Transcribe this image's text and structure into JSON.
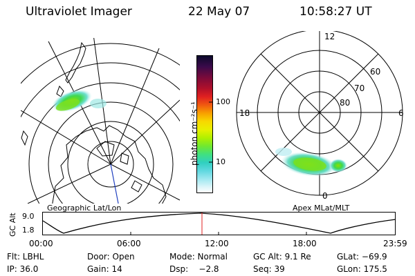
{
  "header": {
    "title": "Ultraviolet Imager",
    "date": "22 May 07",
    "time": "10:58:27 UT"
  },
  "geo_panel": {
    "label": "Geographic Lat/Lon"
  },
  "apex_panel": {
    "label": "Apex MLat/MLT",
    "mlt_labels": {
      "top": "12",
      "left": "18",
      "right": "6",
      "bottom": "0"
    },
    "lat_labels": [
      "60",
      "70",
      "80"
    ]
  },
  "colorbar": {
    "unit_label": "photon cm⁻²s⁻¹",
    "ticks": [
      "100",
      "10"
    ],
    "colors": [
      "#0a0a2a",
      "#3a0a4a",
      "#7a0a3a",
      "#b0102a",
      "#e02020",
      "#f05a10",
      "#f8a000",
      "#f8d800",
      "#e8f000",
      "#b0f000",
      "#70e830",
      "#40e080",
      "#30d0c0",
      "#60d8e0",
      "#a0e8f0",
      "#e0f6fa",
      "#ffffff"
    ]
  },
  "altitude_plot": {
    "ylabel": "GC Alt",
    "yticks": [
      "9.0",
      "1.8"
    ],
    "xticks": [
      "00:00",
      "06:00",
      "12:00",
      "18:00",
      "23:59"
    ],
    "current_time_marker": "10:58"
  },
  "info": {
    "row1": [
      "Flt: LBHL",
      "Door: Open",
      "Mode: Normal",
      "GC Alt: 9.1 Re",
      "GLat: −69.9"
    ],
    "row2": [
      "IP: 36.0",
      "Gain: 14",
      "Dsp:    −2.8",
      "Seq: 39",
      "GLon: 175.5"
    ]
  }
}
